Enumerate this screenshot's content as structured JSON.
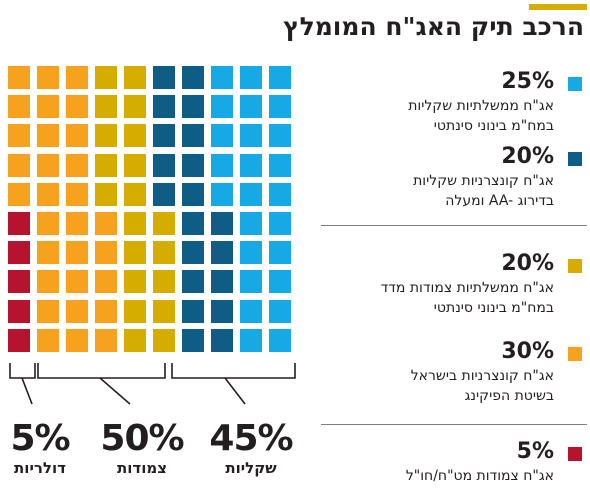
{
  "title": "הרכב תיק האג\"ח המומלץ",
  "colors": {
    "light_blue": "#17a9e6",
    "dark_blue": "#0f5c84",
    "mustard": "#d4ad00",
    "orange": "#f7a21e",
    "red": "#b5132e",
    "accent_bar": "#d4ad00"
  },
  "chart_data": {
    "type": "waffle",
    "grid": {
      "rows": 10,
      "columns": 10
    },
    "legend": [
      {
        "percent": "25%",
        "value": 25,
        "color": "#17a9e6",
        "label_line1": "אג\"ח ממשלתיות שקליות",
        "label_line2": "במח\"מ בינוני סינתטי"
      },
      {
        "percent": "20%",
        "value": 20,
        "color": "#0f5c84",
        "label_line1": "אג\"ח קונצרניות שקליות",
        "label_line2": "בדירוג AA- ומעלה"
      },
      {
        "percent": "20%",
        "value": 20,
        "color": "#d4ad00",
        "label_line1": "אג\"ח ממשלתיות צמודות מדד",
        "label_line2": "במח\"מ בינוני סינתטי"
      },
      {
        "percent": "30%",
        "value": 30,
        "color": "#f7a21e",
        "label_line1": "אג\"ח קונצרניות בישראל",
        "label_line2": "בשיטת הפיקינג"
      },
      {
        "percent": "5%",
        "value": 5,
        "color": "#b5132e",
        "label_line1": "אג\"ח צמודות מט\"ח/חו\"ל",
        "label_line2": ""
      }
    ],
    "groups": [
      {
        "percent": "45%",
        "value": 45,
        "label": "שקליות"
      },
      {
        "percent": "50%",
        "value": 50,
        "label": "צמודות"
      },
      {
        "percent": "5%",
        "value": 5,
        "label": "דולריות"
      }
    ]
  }
}
